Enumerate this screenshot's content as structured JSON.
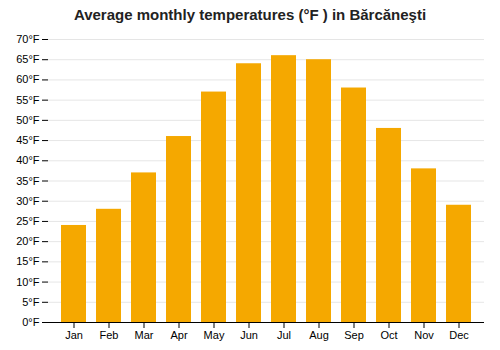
{
  "chart_data": {
    "type": "bar",
    "title": "Average monthly temperatures (°F ) in Bărcăneşti",
    "categories": [
      "Jan",
      "Feb",
      "Mar",
      "Apr",
      "May",
      "Jun",
      "Jul",
      "Aug",
      "Sep",
      "Oct",
      "Nov",
      "Dec"
    ],
    "values": [
      24,
      28,
      37,
      46,
      57,
      64,
      66,
      65,
      58,
      48,
      38,
      29
    ],
    "color": "#F5A800",
    "ylim": [
      0,
      70
    ],
    "yticks": [
      {
        "value": 0,
        "label": "0°F"
      },
      {
        "value": 5,
        "label": "5°F"
      },
      {
        "value": 10,
        "label": "10°F"
      },
      {
        "value": 15,
        "label": "15°F"
      },
      {
        "value": 20,
        "label": "20°F"
      },
      {
        "value": 25,
        "label": "25°F"
      },
      {
        "value": 30,
        "label": "30°F"
      },
      {
        "value": 35,
        "label": "35°F"
      },
      {
        "value": 40,
        "label": "40°F"
      },
      {
        "value": 45,
        "label": "45°F"
      },
      {
        "value": 50,
        "label": "50°F"
      },
      {
        "value": 55,
        "label": "55°F"
      },
      {
        "value": 60,
        "label": "60°F"
      },
      {
        "value": 65,
        "label": "65°F"
      },
      {
        "value": 70,
        "label": "70°F"
      }
    ],
    "grid": true
  }
}
